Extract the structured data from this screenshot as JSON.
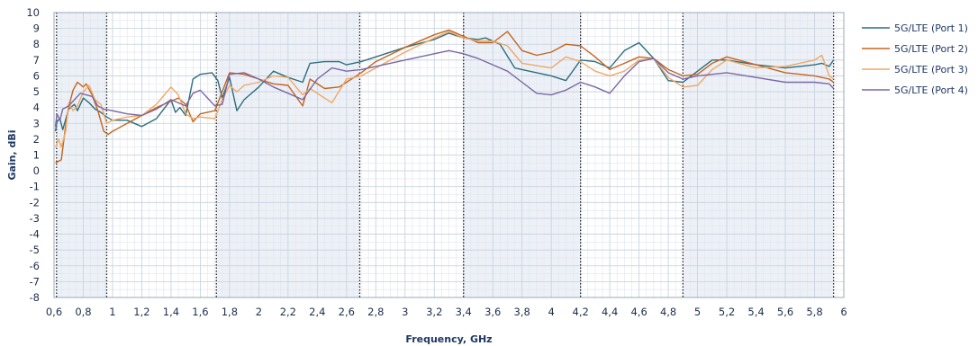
{
  "chart_data": {
    "type": "line",
    "xlabel": "Frequency, GHz",
    "ylabel": "Gain, dBi",
    "xlim": [
      0.6,
      6.0
    ],
    "ylim": [
      -8,
      10
    ],
    "x_ticks": [
      "0,6",
      "0,8",
      "1",
      "1,2",
      "1,4",
      "1,6",
      "1,8",
      "2",
      "2,2",
      "2,4",
      "2,6",
      "2,8",
      "3",
      "3,2",
      "3,4",
      "3,6",
      "3,8",
      "4",
      "4,2",
      "4,4",
      "4,6",
      "4,8",
      "5",
      "5,2",
      "5,4",
      "5,6",
      "5,8",
      "6"
    ],
    "y_ticks": [
      "-8",
      "-7",
      "-6",
      "-5",
      "-4",
      "-3",
      "-2",
      "-1",
      "0",
      "1",
      "2",
      "3",
      "4",
      "5",
      "6",
      "7",
      "8",
      "9",
      "10"
    ],
    "grid": true,
    "legend_position": "right",
    "bands": [
      [
        0.617,
        0.96
      ],
      [
        1.71,
        2.69
      ],
      [
        3.4,
        4.2
      ],
      [
        4.9,
        5.93
      ]
    ],
    "series": [
      {
        "name": "5G/LTE (Port 1)",
        "color": "#2e6e7e",
        "points": [
          [
            0.61,
            2.5
          ],
          [
            0.62,
            3.1
          ],
          [
            0.64,
            3.3
          ],
          [
            0.66,
            2.6
          ],
          [
            0.7,
            3.9
          ],
          [
            0.74,
            4.2
          ],
          [
            0.76,
            3.8
          ],
          [
            0.8,
            4.6
          ],
          [
            0.84,
            4.3
          ],
          [
            0.88,
            3.9
          ],
          [
            0.92,
            3.7
          ],
          [
            0.96,
            3.4
          ],
          [
            1.0,
            3.2
          ],
          [
            1.1,
            3.2
          ],
          [
            1.2,
            2.8
          ],
          [
            1.3,
            3.3
          ],
          [
            1.4,
            4.5
          ],
          [
            1.43,
            3.7
          ],
          [
            1.46,
            4.0
          ],
          [
            1.5,
            3.5
          ],
          [
            1.55,
            5.8
          ],
          [
            1.6,
            6.1
          ],
          [
            1.68,
            6.2
          ],
          [
            1.72,
            5.7
          ],
          [
            1.75,
            4.6
          ],
          [
            1.8,
            5.9
          ],
          [
            1.85,
            3.8
          ],
          [
            1.9,
            4.5
          ],
          [
            2.0,
            5.3
          ],
          [
            2.1,
            6.3
          ],
          [
            2.2,
            5.9
          ],
          [
            2.3,
            5.6
          ],
          [
            2.35,
            6.8
          ],
          [
            2.45,
            6.9
          ],
          [
            2.55,
            6.9
          ],
          [
            2.6,
            6.7
          ],
          [
            2.7,
            6.9
          ],
          [
            2.8,
            7.2
          ],
          [
            3.0,
            7.8
          ],
          [
            3.2,
            8.3
          ],
          [
            3.3,
            8.7
          ],
          [
            3.4,
            8.4
          ],
          [
            3.5,
            8.3
          ],
          [
            3.55,
            8.4
          ],
          [
            3.65,
            8.0
          ],
          [
            3.75,
            6.5
          ],
          [
            3.8,
            6.4
          ],
          [
            3.9,
            6.2
          ],
          [
            4.0,
            6.0
          ],
          [
            4.1,
            5.7
          ],
          [
            4.2,
            7.0
          ],
          [
            4.3,
            6.9
          ],
          [
            4.4,
            6.5
          ],
          [
            4.5,
            7.6
          ],
          [
            4.6,
            8.1
          ],
          [
            4.7,
            7.1
          ],
          [
            4.8,
            5.7
          ],
          [
            4.9,
            5.6
          ],
          [
            5.0,
            6.3
          ],
          [
            5.1,
            7.0
          ],
          [
            5.2,
            7.0
          ],
          [
            5.4,
            6.7
          ],
          [
            5.6,
            6.5
          ],
          [
            5.8,
            6.7
          ],
          [
            5.85,
            6.8
          ],
          [
            5.9,
            6.6
          ],
          [
            5.93,
            7.0
          ]
        ]
      },
      {
        "name": "5G/LTE (Port 2)",
        "color": "#c5651e",
        "points": [
          [
            0.61,
            0.5
          ],
          [
            0.63,
            0.6
          ],
          [
            0.65,
            0.7
          ],
          [
            0.68,
            2.9
          ],
          [
            0.7,
            4.0
          ],
          [
            0.73,
            5.1
          ],
          [
            0.76,
            5.6
          ],
          [
            0.8,
            5.3
          ],
          [
            0.82,
            5.5
          ],
          [
            0.86,
            4.8
          ],
          [
            0.9,
            3.8
          ],
          [
            0.94,
            2.5
          ],
          [
            0.97,
            2.3
          ],
          [
            1.0,
            2.5
          ],
          [
            1.1,
            3.0
          ],
          [
            1.2,
            3.5
          ],
          [
            1.3,
            4.0
          ],
          [
            1.4,
            4.4
          ],
          [
            1.45,
            4.6
          ],
          [
            1.5,
            4.2
          ],
          [
            1.55,
            3.1
          ],
          [
            1.6,
            3.6
          ],
          [
            1.7,
            3.8
          ],
          [
            1.8,
            6.2
          ],
          [
            1.9,
            6.1
          ],
          [
            2.0,
            5.8
          ],
          [
            2.1,
            5.5
          ],
          [
            2.2,
            5.4
          ],
          [
            2.3,
            4.1
          ],
          [
            2.35,
            5.8
          ],
          [
            2.45,
            5.2
          ],
          [
            2.55,
            5.3
          ],
          [
            2.7,
            6.2
          ],
          [
            2.8,
            6.9
          ],
          [
            3.0,
            7.8
          ],
          [
            3.2,
            8.6
          ],
          [
            3.3,
            8.9
          ],
          [
            3.4,
            8.5
          ],
          [
            3.5,
            8.1
          ],
          [
            3.6,
            8.1
          ],
          [
            3.7,
            8.8
          ],
          [
            3.8,
            7.6
          ],
          [
            3.9,
            7.3
          ],
          [
            4.0,
            7.5
          ],
          [
            4.1,
            8.0
          ],
          [
            4.2,
            7.9
          ],
          [
            4.3,
            7.2
          ],
          [
            4.4,
            6.4
          ],
          [
            4.5,
            6.8
          ],
          [
            4.6,
            7.2
          ],
          [
            4.7,
            7.1
          ],
          [
            4.8,
            6.4
          ],
          [
            4.9,
            6.0
          ],
          [
            5.0,
            6.1
          ],
          [
            5.1,
            6.8
          ],
          [
            5.2,
            7.2
          ],
          [
            5.4,
            6.7
          ],
          [
            5.6,
            6.2
          ],
          [
            5.8,
            6.0
          ],
          [
            5.9,
            5.8
          ],
          [
            5.93,
            5.6
          ]
        ]
      },
      {
        "name": "5G/LTE (Port 3)",
        "color": "#f0a865",
        "points": [
          [
            0.61,
            1.5
          ],
          [
            0.63,
            2.0
          ],
          [
            0.65,
            1.5
          ],
          [
            0.68,
            2.5
          ],
          [
            0.7,
            4.3
          ],
          [
            0.73,
            3.8
          ],
          [
            0.76,
            4.1
          ],
          [
            0.8,
            5.0
          ],
          [
            0.84,
            5.4
          ],
          [
            0.88,
            4.5
          ],
          [
            0.92,
            4.2
          ],
          [
            0.96,
            3.0
          ],
          [
            1.0,
            3.2
          ],
          [
            1.1,
            3.4
          ],
          [
            1.2,
            3.5
          ],
          [
            1.3,
            4.2
          ],
          [
            1.4,
            5.3
          ],
          [
            1.45,
            4.8
          ],
          [
            1.5,
            3.6
          ],
          [
            1.55,
            3.3
          ],
          [
            1.6,
            3.4
          ],
          [
            1.7,
            3.3
          ],
          [
            1.75,
            4.5
          ],
          [
            1.8,
            5.4
          ],
          [
            1.85,
            5.0
          ],
          [
            1.9,
            5.4
          ],
          [
            2.0,
            5.6
          ],
          [
            2.1,
            6.0
          ],
          [
            2.2,
            5.9
          ],
          [
            2.3,
            4.8
          ],
          [
            2.35,
            5.2
          ],
          [
            2.5,
            4.3
          ],
          [
            2.6,
            5.8
          ],
          [
            2.7,
            6.0
          ],
          [
            2.8,
            6.5
          ],
          [
            3.0,
            7.5
          ],
          [
            3.2,
            8.4
          ],
          [
            3.3,
            8.8
          ],
          [
            3.4,
            8.4
          ],
          [
            3.5,
            8.2
          ],
          [
            3.6,
            8.2
          ],
          [
            3.7,
            7.9
          ],
          [
            3.8,
            6.8
          ],
          [
            4.0,
            6.5
          ],
          [
            4.1,
            7.2
          ],
          [
            4.2,
            6.9
          ],
          [
            4.3,
            6.3
          ],
          [
            4.4,
            6.0
          ],
          [
            4.5,
            6.3
          ],
          [
            4.6,
            7.0
          ],
          [
            4.7,
            7.1
          ],
          [
            4.8,
            5.9
          ],
          [
            4.9,
            5.3
          ],
          [
            5.0,
            5.4
          ],
          [
            5.1,
            6.4
          ],
          [
            5.2,
            7.0
          ],
          [
            5.4,
            6.5
          ],
          [
            5.6,
            6.6
          ],
          [
            5.8,
            7.0
          ],
          [
            5.85,
            7.3
          ],
          [
            5.9,
            6.0
          ],
          [
            5.93,
            5.8
          ]
        ]
      },
      {
        "name": "5G/LTE (Port 4)",
        "color": "#7b68a5",
        "points": [
          [
            0.61,
            2.8
          ],
          [
            0.62,
            3.6
          ],
          [
            0.64,
            3.2
          ],
          [
            0.66,
            3.9
          ],
          [
            0.7,
            4.1
          ],
          [
            0.74,
            4.5
          ],
          [
            0.78,
            4.9
          ],
          [
            0.82,
            4.8
          ],
          [
            0.86,
            4.7
          ],
          [
            0.9,
            4.1
          ],
          [
            0.94,
            3.9
          ],
          [
            1.0,
            3.8
          ],
          [
            1.1,
            3.6
          ],
          [
            1.2,
            3.5
          ],
          [
            1.3,
            3.9
          ],
          [
            1.4,
            4.5
          ],
          [
            1.45,
            4.3
          ],
          [
            1.5,
            4.1
          ],
          [
            1.55,
            4.9
          ],
          [
            1.6,
            5.1
          ],
          [
            1.65,
            4.6
          ],
          [
            1.7,
            4.1
          ],
          [
            1.75,
            4.2
          ],
          [
            1.8,
            6.1
          ],
          [
            1.9,
            6.2
          ],
          [
            2.0,
            5.8
          ],
          [
            2.1,
            5.3
          ],
          [
            2.2,
            4.9
          ],
          [
            2.3,
            4.5
          ],
          [
            2.4,
            5.8
          ],
          [
            2.5,
            6.5
          ],
          [
            2.6,
            6.3
          ],
          [
            2.7,
            6.4
          ],
          [
            2.8,
            6.6
          ],
          [
            3.0,
            7.0
          ],
          [
            3.2,
            7.4
          ],
          [
            3.3,
            7.6
          ],
          [
            3.4,
            7.4
          ],
          [
            3.5,
            7.1
          ],
          [
            3.6,
            6.7
          ],
          [
            3.7,
            6.3
          ],
          [
            3.8,
            5.6
          ],
          [
            3.9,
            4.9
          ],
          [
            4.0,
            4.8
          ],
          [
            4.1,
            5.1
          ],
          [
            4.2,
            5.6
          ],
          [
            4.3,
            5.3
          ],
          [
            4.4,
            4.9
          ],
          [
            4.5,
            6.0
          ],
          [
            4.6,
            6.9
          ],
          [
            4.7,
            7.1
          ],
          [
            4.8,
            6.2
          ],
          [
            4.9,
            5.8
          ],
          [
            5.0,
            6.0
          ],
          [
            5.1,
            6.1
          ],
          [
            5.2,
            6.2
          ],
          [
            5.4,
            5.9
          ],
          [
            5.6,
            5.6
          ],
          [
            5.8,
            5.6
          ],
          [
            5.9,
            5.5
          ],
          [
            5.93,
            5.2
          ]
        ]
      }
    ]
  }
}
